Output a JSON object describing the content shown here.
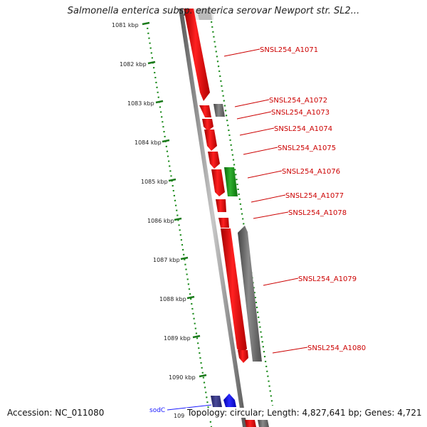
{
  "header": {
    "title": "Salmonella enterica subsp. enterica serovar Newport str. SL2..."
  },
  "kbp_labels": [
    "1081 kbp",
    "1082 kbp",
    "1083 kbp",
    "1084 kbp",
    "1085 kbp",
    "1086 kbp",
    "1087 kbp",
    "1088 kbp",
    "1089 kbp",
    "1090 kbp",
    "109"
  ],
  "gene_labels": [
    "SNSL254_A1071",
    "SNSL254_A1072",
    "SNSL254_A1073",
    "SNSL254_A1074",
    "SNSL254_A1075",
    "SNSL254_A1076",
    "SNSL254_A1077",
    "SNSL254_A1078",
    "SNSL254_A1079",
    "SNSL254_A1080"
  ],
  "named_genes": [
    "sodC"
  ],
  "footer": {
    "accession": "Accession: NC_011080",
    "info": "Topology: circular; Length: 4,827,641 bp; Genes: 4,721"
  },
  "colors": {
    "forward_gene": "#ff0000",
    "reverse_gene": "#777777",
    "rna_gene": "#1a9a1a",
    "named_gene": "#2222dd",
    "scale_dots": "#1a8a1a",
    "label_text": "#cc0000"
  }
}
